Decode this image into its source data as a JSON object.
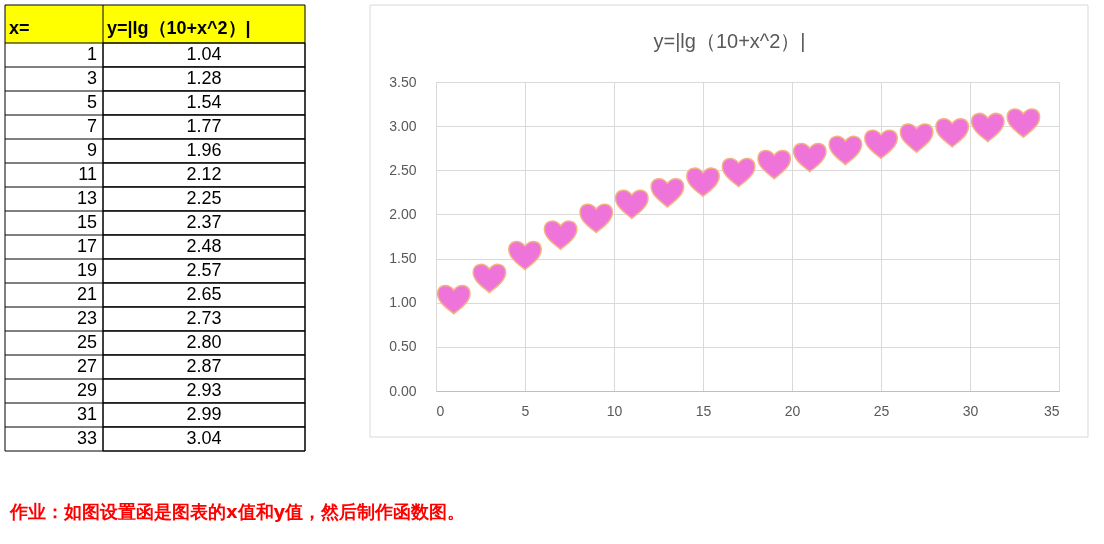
{
  "chart_data": [
    {
      "type": "heatmap",
      "ylabel": "x=",
      "categories": [
        "y=|lg（10+x^2）|"
      ],
      "y_categories": [
        "1",
        "3",
        "5",
        "7",
        "9",
        "11",
        "13",
        "15",
        "17",
        "19",
        "21",
        "23",
        "25",
        "27",
        "29",
        "31",
        "33"
      ],
      "cells": [
        [
          1.04
        ],
        [
          1.28
        ],
        [
          1.54
        ],
        [
          1.77
        ],
        [
          1.96
        ],
        [
          2.12
        ],
        [
          2.25
        ],
        [
          2.37
        ],
        [
          2.48
        ],
        [
          2.57
        ],
        [
          2.65
        ],
        [
          2.73
        ],
        [
          2.8
        ],
        [
          2.87
        ],
        [
          2.93
        ],
        [
          2.99
        ],
        [
          3.04
        ]
      ],
      "cell_labels": [
        [
          "1.04"
        ],
        [
          "1.28"
        ],
        [
          "1.54"
        ],
        [
          "1.77"
        ],
        [
          "1.96"
        ],
        [
          "2.12"
        ],
        [
          "2.25"
        ],
        [
          "2.37"
        ],
        [
          "2.48"
        ],
        [
          "2.57"
        ],
        [
          "2.65"
        ],
        [
          "2.73"
        ],
        [
          "2.80"
        ],
        [
          "2.87"
        ],
        [
          "2.93"
        ],
        [
          "2.99"
        ],
        [
          "3.04"
        ]
      ]
    },
    {
      "type": "scatter",
      "title": "y=|lg（10+x^2）|",
      "x": [
        1,
        3,
        5,
        7,
        9,
        11,
        13,
        15,
        17,
        19,
        21,
        23,
        25,
        27,
        29,
        31,
        33
      ],
      "values": [
        1.04,
        1.28,
        1.54,
        1.77,
        1.96,
        2.12,
        2.25,
        2.37,
        2.48,
        2.57,
        2.65,
        2.73,
        2.8,
        2.87,
        2.93,
        2.99,
        3.04
      ],
      "color": "#ef74da",
      "xlim": [
        0,
        35
      ],
      "xticks": [
        0,
        5,
        10,
        15,
        20,
        25,
        30,
        35
      ],
      "ylim": [
        0,
        3.5
      ],
      "yticks": [
        {
          "value": 0,
          "label": "0.00"
        },
        {
          "value": 0.5,
          "label": "0.50"
        },
        {
          "value": 1,
          "label": "1.00"
        },
        {
          "value": 1.5,
          "label": "1.50"
        },
        {
          "value": 2,
          "label": "2.00"
        },
        {
          "value": 2.5,
          "label": "2.50"
        },
        {
          "value": 3,
          "label": "3.00"
        },
        {
          "value": 3.5,
          "label": "3.50"
        }
      ],
      "grid": true,
      "annotations": [
        "作业：如图设置函是图表的x值和y值，然后制作函数图。"
      ]
    }
  ]
}
